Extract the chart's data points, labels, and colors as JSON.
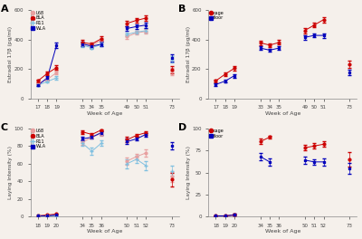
{
  "bg_color": "#f5f0eb",
  "panel_A": {
    "title": "A",
    "xlabel": "Week of Age",
    "ylabel": "Estradiol 17β (pg/ml)",
    "ylim": [
      0,
      600
    ],
    "yticks": [
      0,
      200,
      400,
      600
    ],
    "xgroups": [
      [
        17,
        18,
        19
      ],
      [
        33,
        34,
        35
      ],
      [
        49,
        50,
        51
      ],
      [
        73
      ]
    ],
    "series": {
      "L68": {
        "color": "#e8a0a0",
        "marker": "o",
        "data": {
          "17": [
            100,
            8
          ],
          "18": [
            130,
            10
          ],
          "19": [
            175,
            12
          ],
          "33": [
            370,
            15
          ],
          "34": [
            360,
            12
          ],
          "35": [
            395,
            15
          ],
          "49": [
            420,
            15
          ],
          "50": [
            445,
            12
          ],
          "51": [
            455,
            15
          ],
          "73": [
            185,
            25
          ]
        }
      },
      "BLA": {
        "color": "#cc0000",
        "marker": "o",
        "data": {
          "17": [
            120,
            8
          ],
          "18": [
            170,
            10
          ],
          "19": [
            210,
            15
          ],
          "33": [
            380,
            15
          ],
          "34": [
            370,
            12
          ],
          "35": [
            405,
            15
          ],
          "49": [
            510,
            18
          ],
          "50": [
            530,
            15
          ],
          "51": [
            545,
            18
          ],
          "73": [
            195,
            25
          ]
        }
      },
      "R11": {
        "color": "#80c0e0",
        "marker": "+",
        "data": {
          "17": [
            90,
            6
          ],
          "18": [
            115,
            8
          ],
          "19": [
            140,
            10
          ],
          "33": [
            360,
            12
          ],
          "34": [
            345,
            10
          ],
          "35": [
            365,
            12
          ],
          "49": [
            435,
            15
          ],
          "50": [
            450,
            12
          ],
          "51": [
            460,
            15
          ],
          "73": [
            265,
            20
          ]
        }
      },
      "WLA": {
        "color": "#0000bb",
        "marker": "s",
        "data": {
          "17": [
            90,
            6
          ],
          "18": [
            140,
            10
          ],
          "19": [
            360,
            20
          ],
          "33": [
            370,
            15
          ],
          "34": [
            355,
            12
          ],
          "35": [
            368,
            15
          ],
          "49": [
            475,
            18
          ],
          "50": [
            488,
            15
          ],
          "51": [
            498,
            18
          ],
          "73": [
            275,
            22
          ]
        }
      }
    }
  },
  "panel_B": {
    "title": "B",
    "xlabel": "Week of Age",
    "ylabel": "Estradiol 17β (pg/ml)",
    "ylim": [
      0,
      600
    ],
    "yticks": [
      0,
      200,
      400,
      600
    ],
    "xgroups": [
      [
        17,
        18,
        19
      ],
      [
        33,
        34,
        35
      ],
      [
        49,
        50,
        51
      ],
      [
        73
      ]
    ],
    "series": {
      "cage": {
        "color": "#cc0000",
        "marker": "o",
        "data": {
          "17": [
            120,
            10
          ],
          "18": [
            165,
            12
          ],
          "19": [
            205,
            15
          ],
          "33": [
            378,
            15
          ],
          "34": [
            362,
            12
          ],
          "35": [
            380,
            15
          ],
          "49": [
            462,
            18
          ],
          "50": [
            498,
            15
          ],
          "51": [
            535,
            18
          ],
          "73": [
            232,
            22
          ]
        }
      },
      "floor": {
        "color": "#0000bb",
        "marker": "s",
        "data": {
          "17": [
            95,
            8
          ],
          "18": [
            118,
            10
          ],
          "19": [
            155,
            12
          ],
          "33": [
            342,
            12
          ],
          "34": [
            328,
            10
          ],
          "35": [
            342,
            12
          ],
          "49": [
            415,
            15
          ],
          "50": [
            428,
            12
          ],
          "51": [
            428,
            15
          ],
          "73": [
            178,
            20
          ]
        }
      }
    }
  },
  "panel_C": {
    "title": "C",
    "xlabel": "Week of Age",
    "ylabel": "Laying Intensity (%)",
    "ylim": [
      0,
      100
    ],
    "yticks": [
      0,
      20,
      40,
      60,
      80,
      100
    ],
    "xgroups": [
      [
        18,
        19,
        20
      ],
      [
        34,
        35,
        36
      ],
      [
        50,
        51,
        52
      ],
      [
        73
      ]
    ],
    "series": {
      "L68": {
        "color": "#e8a0a0",
        "marker": "o",
        "data": {
          "18": [
            1,
            0.5
          ],
          "19": [
            1,
            0.5
          ],
          "20": [
            2,
            0.5
          ],
          "34": [
            84,
            3
          ],
          "35": [
            90,
            2
          ],
          "36": [
            94,
            2
          ],
          "50": [
            63,
            4
          ],
          "51": [
            68,
            3
          ],
          "52": [
            72,
            4
          ],
          "73": [
            45,
            6
          ]
        }
      },
      "BLA": {
        "color": "#cc0000",
        "marker": "o",
        "data": {
          "18": [
            1,
            0.5
          ],
          "19": [
            2,
            0.5
          ],
          "20": [
            3,
            1
          ],
          "34": [
            96,
            2
          ],
          "35": [
            93,
            2
          ],
          "36": [
            98,
            1
          ],
          "50": [
            87,
            3
          ],
          "51": [
            92,
            2
          ],
          "52": [
            95,
            2
          ],
          "73": [
            42,
            8
          ]
        }
      },
      "R11": {
        "color": "#80c0e0",
        "marker": "+",
        "data": {
          "18": [
            1,
            0.5
          ],
          "19": [
            1,
            0.5
          ],
          "20": [
            1,
            0.5
          ],
          "34": [
            83,
            3
          ],
          "35": [
            74,
            4
          ],
          "36": [
            83,
            3
          ],
          "50": [
            60,
            5
          ],
          "51": [
            65,
            4
          ],
          "52": [
            58,
            5
          ],
          "73": [
            52,
            6
          ]
        }
      },
      "WLA": {
        "color": "#0000bb",
        "marker": "s",
        "data": {
          "18": [
            1,
            0.5
          ],
          "19": [
            1,
            0.5
          ],
          "20": [
            2,
            0.5
          ],
          "34": [
            88,
            2
          ],
          "35": [
            90,
            2
          ],
          "36": [
            95,
            2
          ],
          "50": [
            85,
            3
          ],
          "51": [
            88,
            2
          ],
          "52": [
            93,
            2
          ],
          "73": [
            80,
            4
          ]
        }
      }
    }
  },
  "panel_D": {
    "title": "D",
    "xlabel": "Week of Age",
    "ylabel": "Laying Intensity (%)",
    "ylim": [
      0,
      100
    ],
    "yticks": [
      0,
      25,
      50,
      75,
      100
    ],
    "xgroups": [
      [
        18,
        19,
        20
      ],
      [
        34,
        35,
        36
      ],
      [
        50,
        51,
        52
      ],
      [
        73
      ]
    ],
    "series": {
      "cage": {
        "color": "#cc0000",
        "marker": "o",
        "data": {
          "18": [
            1,
            0.5
          ],
          "19": [
            1,
            0.5
          ],
          "20": [
            2,
            1
          ],
          "34": [
            85,
            3
          ],
          "35": [
            90,
            2
          ],
          "50": [
            78,
            3
          ],
          "51": [
            80,
            3
          ],
          "52": [
            82,
            3
          ],
          "73": [
            65,
            8
          ]
        }
      },
      "floor": {
        "color": "#0000bb",
        "marker": "s",
        "data": {
          "18": [
            1,
            0.5
          ],
          "19": [
            1,
            0.5
          ],
          "20": [
            2,
            1
          ],
          "34": [
            68,
            4
          ],
          "35": [
            62,
            4
          ],
          "50": [
            64,
            4
          ],
          "51": [
            62,
            3
          ],
          "52": [
            62,
            4
          ],
          "73": [
            55,
            6
          ]
        }
      }
    }
  }
}
